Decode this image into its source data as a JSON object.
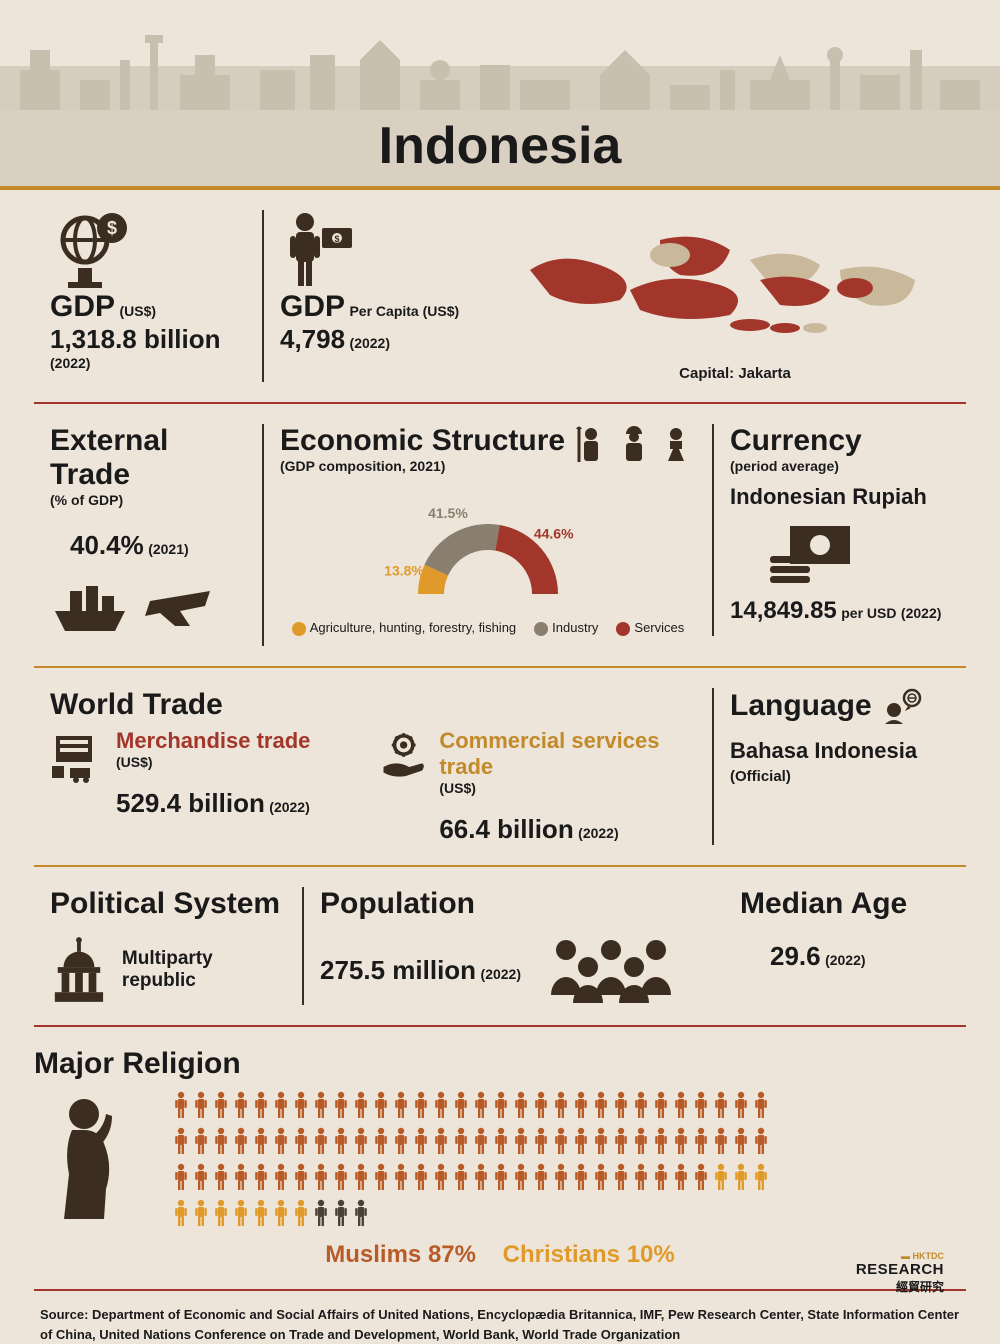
{
  "title": "Indonesia",
  "colors": {
    "bg": "#ede5da",
    "dark": "#3b2e21",
    "gold": "#c28a2a",
    "red": "#a2362a",
    "grey": "#8a7f6f",
    "orange_accent": "#e09a2a",
    "muslim": "#b95b27",
    "christian": "#e09a2a",
    "other_rel": "#4a4038"
  },
  "gdp": {
    "label": "GDP",
    "unit": "(US$)",
    "value": "1,318.8 billion",
    "year": "(2022)"
  },
  "gdp_pc": {
    "label": "GDP",
    "unit": "Per Capita (US$)",
    "value": "4,798",
    "year": "(2022)"
  },
  "capital": "Capital: Jakarta",
  "ext_trade": {
    "title": "External Trade",
    "sub": "(% of GDP)",
    "value": "40.4%",
    "year": "(2021)"
  },
  "econ_struct": {
    "title": "Economic Structure",
    "sub": "(GDP composition, 2021)",
    "segments": [
      {
        "label": "Agriculture, hunting, forestry, fishing",
        "pct": 13.8,
        "pct_label": "13.8%",
        "color": "#e09a2a"
      },
      {
        "label": "Industry",
        "pct": 41.5,
        "pct_label": "41.5%",
        "color": "#8a7f6f"
      },
      {
        "label": "Services",
        "pct": 44.6,
        "pct_label": "44.6%",
        "color": "#a2362a"
      }
    ]
  },
  "currency": {
    "title": "Currency",
    "sub": "(period average)",
    "name": "Indonesian Rupiah",
    "value": "14,849.85",
    "unit": "per USD",
    "year": "(2022)"
  },
  "world_trade": {
    "title": "World Trade",
    "merch": {
      "label": "Merchandise trade",
      "unit": "(US$)",
      "value": "529.4 billion",
      "year": "(2022)"
    },
    "serv": {
      "label": "Commercial services trade",
      "unit": "(US$)",
      "value": "66.4 billion",
      "year": "(2022)"
    }
  },
  "language": {
    "title": "Language",
    "name": "Bahasa Indonesia",
    "sub": "(Official)"
  },
  "political": {
    "title": "Political System",
    "value": "Multiparty republic"
  },
  "population": {
    "title": "Population",
    "value": "275.5 million",
    "year": "(2022)"
  },
  "median_age": {
    "title": "Median Age",
    "value": "29.6",
    "year": "(2022)"
  },
  "religion": {
    "title": "Major Religion",
    "muslims_label": "Muslims 87%",
    "christians_label": "Christians 10%",
    "breakdown": {
      "muslim": 87,
      "christian": 10,
      "other": 3,
      "total": 100,
      "per_row": 30
    }
  },
  "source": "Source: Department of Economic and Social Affairs of United Nations, Encyclopædia Britannica, IMF, Pew Research Center, State Information Center of China, United Nations Conference on Trade and Development, World Bank, World Trade Organization",
  "footer": {
    "line1": "RESEARCH",
    "line2": "經貿研究"
  }
}
